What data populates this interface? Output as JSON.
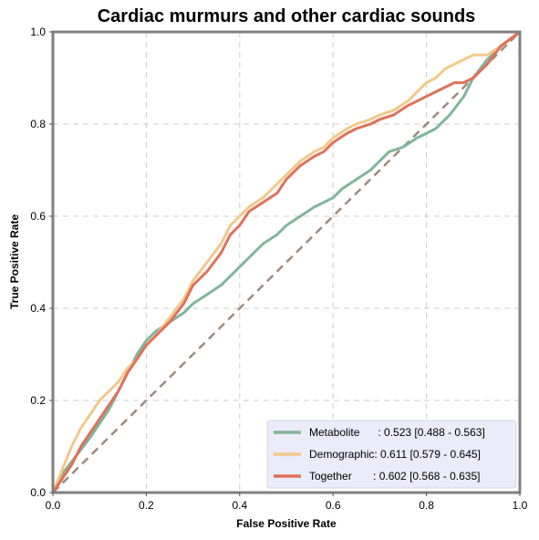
{
  "chart_data": {
    "type": "line",
    "title": "Cardiac murmurs and other cardiac sounds",
    "xlabel": "False Positive Rate",
    "ylabel": "True Positive Rate",
    "xlim": [
      0,
      1
    ],
    "ylim": [
      0,
      1
    ],
    "xticks": [
      "0.0",
      "0.2",
      "0.4",
      "0.6",
      "0.8",
      "1.0"
    ],
    "yticks": [
      "0.0",
      "0.2",
      "0.4",
      "0.6",
      "0.8",
      "1.0"
    ],
    "grid": true,
    "legend_position": "bottom-right",
    "reference_line": {
      "color": "#a08a7c",
      "style": "dashed",
      "x": [
        0,
        1
      ],
      "y": [
        0,
        1
      ]
    },
    "series": [
      {
        "name": "Metabolite",
        "label": "Metabolite      : 0.523 [0.488 - 0.563]",
        "color": "#7fb69a",
        "x": [
          0,
          0.02,
          0.05,
          0.08,
          0.1,
          0.12,
          0.14,
          0.16,
          0.18,
          0.2,
          0.22,
          0.25,
          0.28,
          0.3,
          0.33,
          0.36,
          0.38,
          0.4,
          0.42,
          0.45,
          0.48,
          0.5,
          0.53,
          0.56,
          0.58,
          0.6,
          0.62,
          0.65,
          0.68,
          0.7,
          0.72,
          0.75,
          0.78,
          0.8,
          0.82,
          0.85,
          0.88,
          0.9,
          0.93,
          0.96,
          1.0
        ],
        "y": [
          0,
          0.04,
          0.08,
          0.12,
          0.15,
          0.18,
          0.22,
          0.26,
          0.3,
          0.33,
          0.35,
          0.37,
          0.39,
          0.41,
          0.43,
          0.45,
          0.47,
          0.49,
          0.51,
          0.54,
          0.56,
          0.58,
          0.6,
          0.62,
          0.63,
          0.64,
          0.66,
          0.68,
          0.7,
          0.72,
          0.74,
          0.75,
          0.77,
          0.78,
          0.79,
          0.82,
          0.86,
          0.9,
          0.94,
          0.97,
          1.0
        ]
      },
      {
        "name": "Demographic",
        "label": "Demographic: 0.611 [0.579 - 0.645]",
        "color": "#f2c98a",
        "x": [
          0,
          0.02,
          0.04,
          0.06,
          0.08,
          0.1,
          0.12,
          0.14,
          0.16,
          0.18,
          0.2,
          0.22,
          0.25,
          0.28,
          0.3,
          0.33,
          0.36,
          0.38,
          0.4,
          0.42,
          0.45,
          0.48,
          0.5,
          0.53,
          0.56,
          0.58,
          0.6,
          0.63,
          0.65,
          0.68,
          0.7,
          0.73,
          0.76,
          0.78,
          0.8,
          0.82,
          0.84,
          0.86,
          0.88,
          0.9,
          0.93,
          0.96,
          1.0
        ],
        "y": [
          0,
          0.05,
          0.1,
          0.14,
          0.17,
          0.2,
          0.22,
          0.24,
          0.27,
          0.29,
          0.32,
          0.34,
          0.38,
          0.42,
          0.46,
          0.5,
          0.54,
          0.58,
          0.6,
          0.62,
          0.64,
          0.67,
          0.69,
          0.72,
          0.74,
          0.75,
          0.77,
          0.79,
          0.8,
          0.81,
          0.82,
          0.83,
          0.85,
          0.87,
          0.89,
          0.9,
          0.92,
          0.93,
          0.94,
          0.95,
          0.95,
          0.97,
          1.0
        ]
      },
      {
        "name": "Together",
        "label": "Together       : 0.602 [0.568 - 0.635]",
        "color": "#e0705a",
        "x": [
          0,
          0.02,
          0.04,
          0.06,
          0.08,
          0.1,
          0.12,
          0.14,
          0.16,
          0.18,
          0.2,
          0.22,
          0.25,
          0.28,
          0.3,
          0.33,
          0.36,
          0.38,
          0.4,
          0.42,
          0.45,
          0.48,
          0.5,
          0.53,
          0.56,
          0.58,
          0.6,
          0.63,
          0.65,
          0.68,
          0.7,
          0.73,
          0.76,
          0.78,
          0.8,
          0.82,
          0.84,
          0.86,
          0.88,
          0.9,
          0.93,
          0.96,
          1.0
        ],
        "y": [
          0,
          0.03,
          0.06,
          0.1,
          0.13,
          0.16,
          0.19,
          0.22,
          0.26,
          0.29,
          0.32,
          0.34,
          0.37,
          0.41,
          0.45,
          0.48,
          0.52,
          0.56,
          0.58,
          0.61,
          0.63,
          0.65,
          0.68,
          0.71,
          0.73,
          0.74,
          0.76,
          0.78,
          0.79,
          0.8,
          0.81,
          0.82,
          0.84,
          0.85,
          0.86,
          0.87,
          0.88,
          0.89,
          0.89,
          0.9,
          0.93,
          0.97,
          1.0
        ]
      }
    ]
  }
}
